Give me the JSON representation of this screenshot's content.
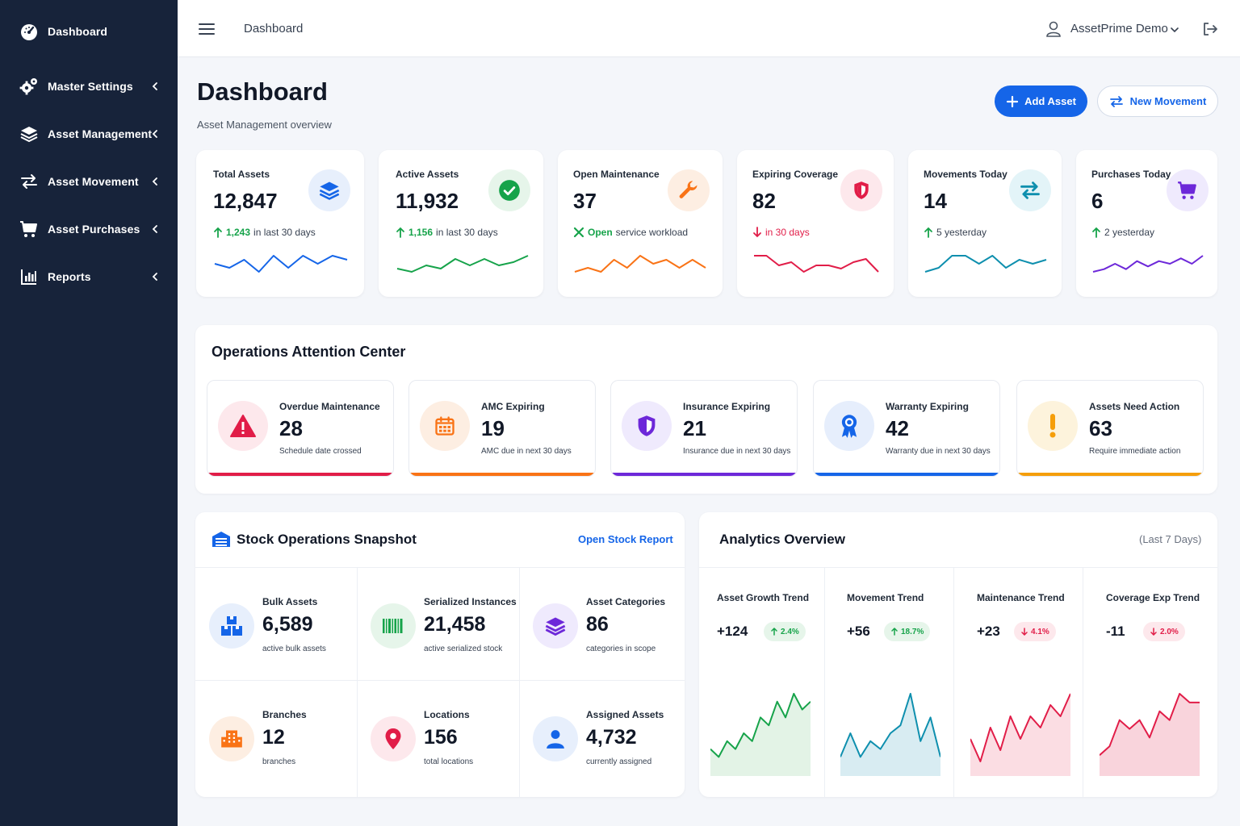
{
  "sidebar": {
    "items": [
      {
        "label": "Dashboard",
        "icon": "speedometer-icon"
      },
      {
        "label": "Master Settings",
        "icon": "gears-icon"
      },
      {
        "label": "Asset Management",
        "icon": "layers-icon"
      },
      {
        "label": "Asset Movement",
        "icon": "arrows-exchange-icon"
      },
      {
        "label": "Asset Purchases",
        "icon": "cart-icon"
      },
      {
        "label": "Reports",
        "icon": "bar-chart-icon"
      }
    ]
  },
  "topbar": {
    "title": "Dashboard",
    "user_name": "AssetPrime Demo"
  },
  "header": {
    "title": "Dashboard",
    "subtitle": "Asset Management overview",
    "add_asset_label": "Add Asset",
    "new_movement_label": "New Movement"
  },
  "kpis": [
    {
      "title": "Total Assets",
      "value": "12,847",
      "foot_em": "1,243",
      "foot_text": "in last 30 days",
      "trend": "up",
      "color": "#1565e8",
      "icon": "layers-icon",
      "spark": [
        4,
        3,
        5,
        2,
        6,
        3,
        6,
        4,
        6,
        5
      ]
    },
    {
      "title": "Active Assets",
      "value": "11,932",
      "foot_em": "1,156",
      "foot_text": "in last 30 days",
      "trend": "up",
      "color": "#16a34a",
      "icon": "check-circle-icon",
      "spark": [
        3,
        2,
        4,
        3,
        6,
        4,
        6,
        4,
        5,
        7
      ]
    },
    {
      "title": "Open Maintenance",
      "value": "37",
      "foot_em": "Open",
      "foot_text": "service workload",
      "trend": "tools",
      "color": "#f97316",
      "icon": "wrench-icon",
      "spark": [
        3,
        4,
        3,
        6,
        4,
        7,
        5,
        6,
        4,
        6,
        4
      ]
    },
    {
      "title": "Expiring Coverage",
      "value": "82",
      "foot_em": "",
      "foot_text": "in 30 days",
      "trend": "down",
      "color": "#e11d48",
      "icon": "shield-icon",
      "spark": [
        7,
        7,
        4,
        5,
        2,
        4,
        4,
        3,
        5,
        6,
        2
      ]
    },
    {
      "title": "Movements Today",
      "value": "14",
      "foot_em": "",
      "foot_text": "5 yesterday",
      "trend": "up",
      "color": "#0e8fae",
      "icon": "arrows-exchange-icon",
      "spark": [
        2,
        3,
        6,
        6,
        4,
        6,
        3,
        5,
        4,
        5
      ]
    },
    {
      "title": "Purchases Today",
      "value": "6",
      "foot_em": "",
      "foot_text": "2 yesterday",
      "trend": "up",
      "color": "#6d28d9",
      "icon": "cart-icon",
      "spark": [
        2,
        3,
        5,
        3,
        6,
        4,
        6,
        5,
        7,
        5,
        8
      ]
    }
  ],
  "attention": {
    "title": "Operations Attention Center",
    "cards": [
      {
        "title": "Overdue Maintenance",
        "value": "28",
        "sub": "Schedule date crossed",
        "color": "#e11d48",
        "bg": "#fde8ec",
        "icon": "warning-icon"
      },
      {
        "title": "AMC Expiring",
        "value": "19",
        "sub": "AMC due in next 30 days",
        "color": "#f97316",
        "bg": "#fdeee2",
        "icon": "calendar-icon"
      },
      {
        "title": "Insurance Expiring",
        "value": "21",
        "sub": "Insurance due in next 30 days",
        "color": "#6d28d9",
        "bg": "#efeafd",
        "icon": "shield-half-icon"
      },
      {
        "title": "Warranty Expiring",
        "value": "42",
        "sub": "Warranty due in next 30 days",
        "color": "#1565e8",
        "bg": "#e6eefc",
        "icon": "award-ribbon-icon"
      },
      {
        "title": "Assets Need Action",
        "value": "63",
        "sub": "Require immediate action",
        "color": "#f59e0b",
        "bg": "#fdf3dc",
        "icon": "exclamation-icon"
      }
    ]
  },
  "stock": {
    "title": "Stock Operations Snapshot",
    "link_label": "Open Stock Report",
    "cells": [
      {
        "title": "Bulk Assets",
        "value": "6,589",
        "sub": "active bulk assets",
        "color": "#1565e8",
        "bg": "#e7effc",
        "icon": "boxes-icon"
      },
      {
        "title": "Serialized Instances",
        "value": "21,458",
        "sub": "active serialized stock",
        "color": "#16a34a",
        "bg": "#e6f5ea",
        "icon": "barcode-icon"
      },
      {
        "title": "Asset Categories",
        "value": "86",
        "sub": "categories in scope",
        "color": "#6d28d9",
        "bg": "#efeafd",
        "icon": "layers-icon"
      },
      {
        "title": "Branches",
        "value": "12",
        "sub": "branches",
        "color": "#f97316",
        "bg": "#fdeee2",
        "icon": "building-icon"
      },
      {
        "title": "Locations",
        "value": "156",
        "sub": "total locations",
        "color": "#e11d48",
        "bg": "#fde8ec",
        "icon": "map-pin-icon"
      },
      {
        "title": "Assigned Assets",
        "value": "4,732",
        "sub": "currently assigned",
        "color": "#1565e8",
        "bg": "#e7effc",
        "icon": "user-icon"
      }
    ]
  },
  "analytics": {
    "title": "Analytics Overview",
    "range": "(Last 7 Days)",
    "columns": [
      {
        "title": "Asset Growth Trend",
        "value": "+124",
        "pct": "2.4%",
        "dir": "up",
        "line": "#16a34a",
        "fill": "#e3f3e6",
        "badge_bg": "#e6f5ea",
        "series": [
          3,
          2,
          4,
          3,
          5,
          4,
          7,
          6,
          9,
          7,
          10,
          8,
          9
        ]
      },
      {
        "title": "Movement Trend",
        "value": "+56",
        "pct": "18.7%",
        "dir": "up",
        "line": "#0e8fae",
        "fill": "#d8ecf2",
        "badge_bg": "#e6f5ea",
        "series": [
          2,
          5,
          2,
          4,
          3,
          5,
          6,
          10,
          4,
          7,
          2
        ]
      },
      {
        "title": "Maintenance Trend",
        "value": "+23",
        "pct": "4.1%",
        "dir": "down",
        "line": "#e11d48",
        "fill": "#fbdde3",
        "badge_bg": "#fde8ec",
        "series": [
          3,
          1,
          4,
          2,
          5,
          3,
          5,
          4,
          6,
          5,
          7
        ]
      },
      {
        "title": "Coverage Exp Trend",
        "value": "-11",
        "pct": "2.0%",
        "dir": "down",
        "line": "#e11d48",
        "fill": "#f9d4dc",
        "badge_bg": "#fde8ec",
        "series": [
          2,
          3,
          6,
          5,
          6,
          4,
          7,
          6,
          9,
          8,
          8
        ]
      }
    ]
  }
}
